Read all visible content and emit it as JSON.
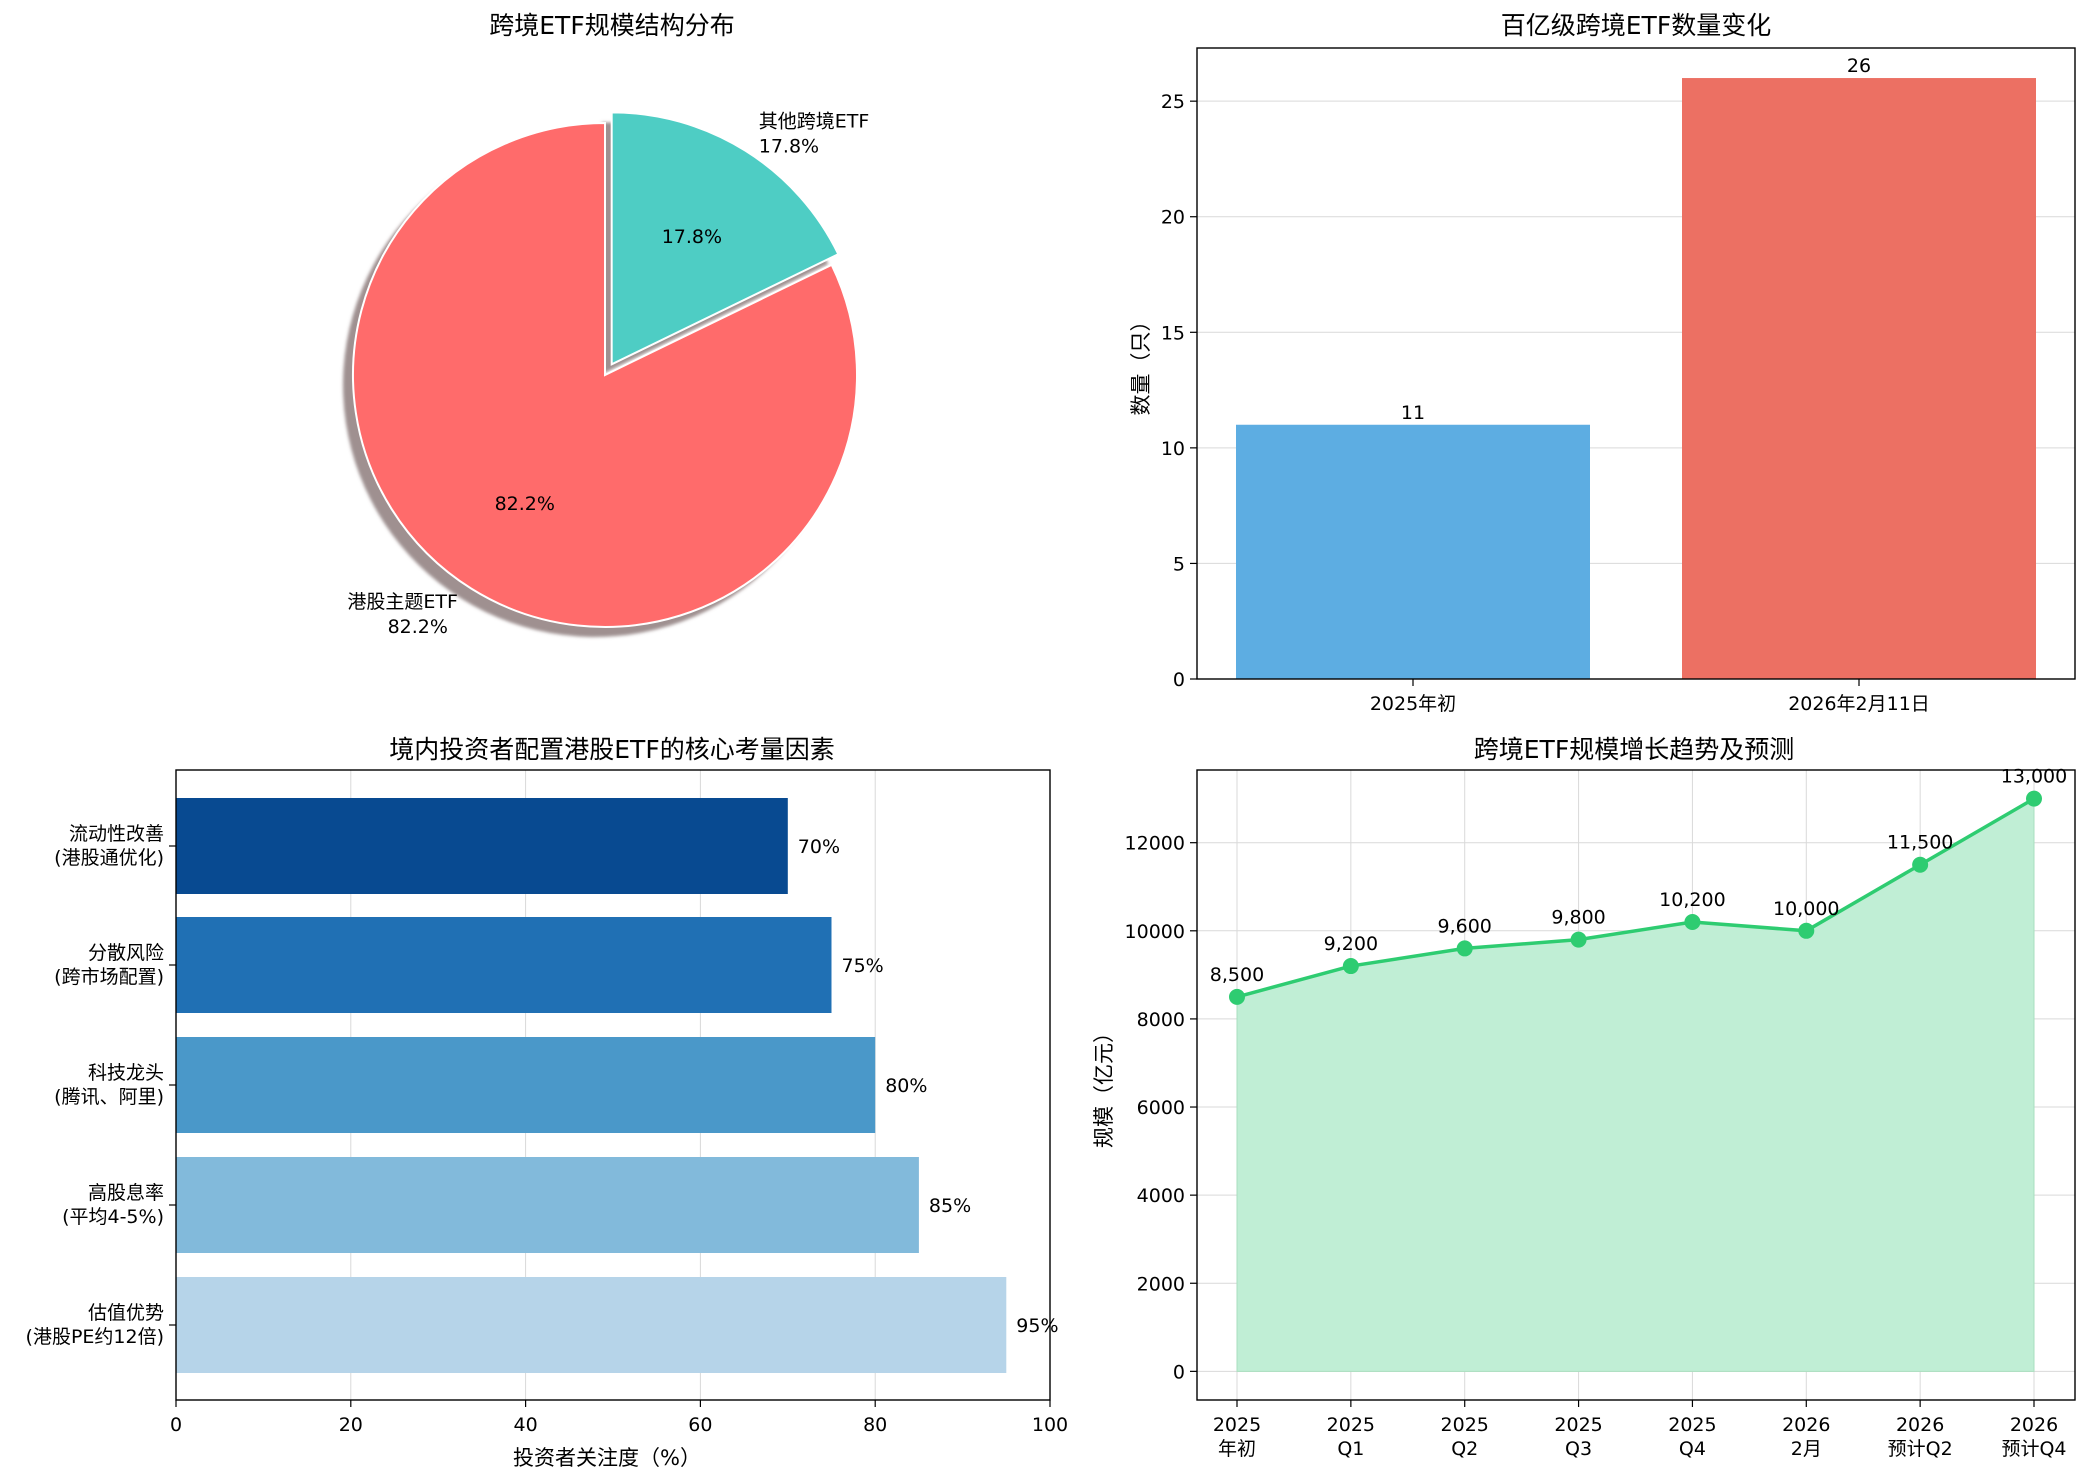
{
  "chart_data": [
    {
      "id": "pie",
      "type": "pie",
      "title": "跨境ETF规模结构分布",
      "slices": [
        {
          "label": "港股主题ETF",
          "value": 82.2,
          "pct": "82.2%",
          "color": "#ff6b6b"
        },
        {
          "label": "其他跨境ETF",
          "value": 17.8,
          "pct": "17.8%",
          "color": "#4ecdc4",
          "explode": true
        }
      ]
    },
    {
      "id": "bar",
      "type": "bar",
      "title": "百亿级跨境ETF数量变化",
      "categories": [
        "2025年初",
        "2026年2月11日"
      ],
      "values": [
        11,
        26
      ],
      "value_labels": [
        "11",
        "26"
      ],
      "colors": [
        "#5dade2",
        "#ec7063"
      ],
      "ylabel": "数量（只）",
      "ylim": [
        0,
        27.3
      ],
      "yticks": [
        0,
        5,
        10,
        15,
        20,
        25
      ]
    },
    {
      "id": "hbar",
      "type": "bar",
      "orientation": "horizontal",
      "title": "境内投资者配置港股ETF的核心考量因素",
      "categories": [
        [
          "流动性改善",
          "(港股通优化)"
        ],
        [
          "分散风险",
          "(跨市场配置)"
        ],
        [
          "科技龙头",
          "(腾讯、阿里)"
        ],
        [
          "高股息率",
          "(平均4-5%)"
        ],
        [
          "估值优势",
          "(港股PE约12倍)"
        ]
      ],
      "values": [
        70,
        75,
        80,
        85,
        95
      ],
      "value_labels": [
        "70%",
        "75%",
        "80%",
        "85%",
        "95%"
      ],
      "colors": [
        "#084a91",
        "#2070b4",
        "#4a98c9",
        "#82badb",
        "#b6d4e9"
      ],
      "xlabel": "投资者关注度（%）",
      "xlim": [
        0,
        100
      ],
      "xticks": [
        0,
        20,
        40,
        60,
        80,
        100
      ]
    },
    {
      "id": "line",
      "type": "area",
      "title": "跨境ETF规模增长趋势及预测",
      "categories": [
        [
          "2025",
          "年初"
        ],
        [
          "2025",
          "Q1"
        ],
        [
          "2025",
          "Q2"
        ],
        [
          "2025",
          "Q3"
        ],
        [
          "2025",
          "Q4"
        ],
        [
          "2026",
          "2月"
        ],
        [
          "2026",
          "预计Q2"
        ],
        [
          "2026",
          "预计Q4"
        ]
      ],
      "values": [
        8500,
        9200,
        9600,
        9800,
        10200,
        10000,
        11500,
        13000
      ],
      "value_labels": [
        "8,500",
        "9,200",
        "9,600",
        "9,800",
        "10,200",
        "10,000",
        "11,500",
        "13,000"
      ],
      "line_color": "#2ecc71",
      "fill_color": "#c0eed5",
      "ylabel": "规模（亿元）",
      "ylim": [
        -650,
        13650
      ],
      "yticks": [
        0,
        2000,
        4000,
        6000,
        8000,
        10000,
        12000
      ]
    }
  ]
}
